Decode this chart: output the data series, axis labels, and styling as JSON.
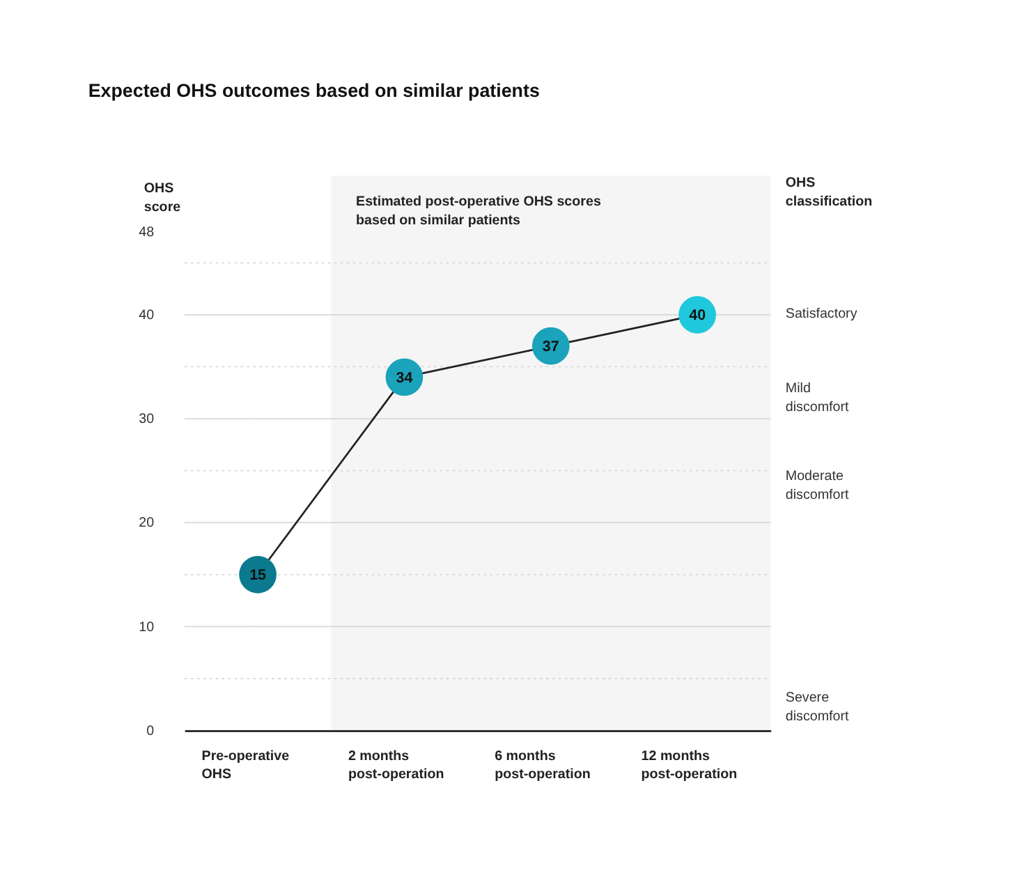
{
  "chart_data": {
    "type": "line",
    "title": "Expected OHS outcomes based on similar patients",
    "ylabel": "OHS score",
    "categories": [
      "Pre-operative OHS",
      "2 months post-operation",
      "6 months post-operation",
      "12 months post-operation"
    ],
    "series": [
      {
        "color": "#222222",
        "colors": [
          "#0b7a8f",
          "#1aa3bb",
          "#1aa3bb",
          "#1fc8dc"
        ],
        "values": [
          15,
          34,
          37,
          40
        ]
      }
    ],
    "data_labels": true,
    "marker": "circle",
    "line_style": "solid",
    "grid": "y",
    "ylim": [
      0,
      48
    ],
    "yticks": [
      0,
      {
        "value": 5,
        "label": null
      },
      10,
      {
        "value": 15,
        "label": null
      },
      20,
      {
        "value": 25,
        "label": null
      },
      30,
      {
        "value": 35,
        "label": null
      },
      40,
      {
        "value": 45,
        "label": null
      },
      48
    ],
    "annotations": [
      "OHS classification",
      "Satisfactory",
      "Mild discomfort",
      "Moderate discomfort",
      "Severe discomfort"
    ],
    "bands": [
      {
        "axis": "x",
        "from": "2 months post-operation",
        "to": "12 months post-operation",
        "label": "Estimated post-operative OHS scores based on similar patients",
        "color": "#f5f5f5"
      }
    ]
  }
}
